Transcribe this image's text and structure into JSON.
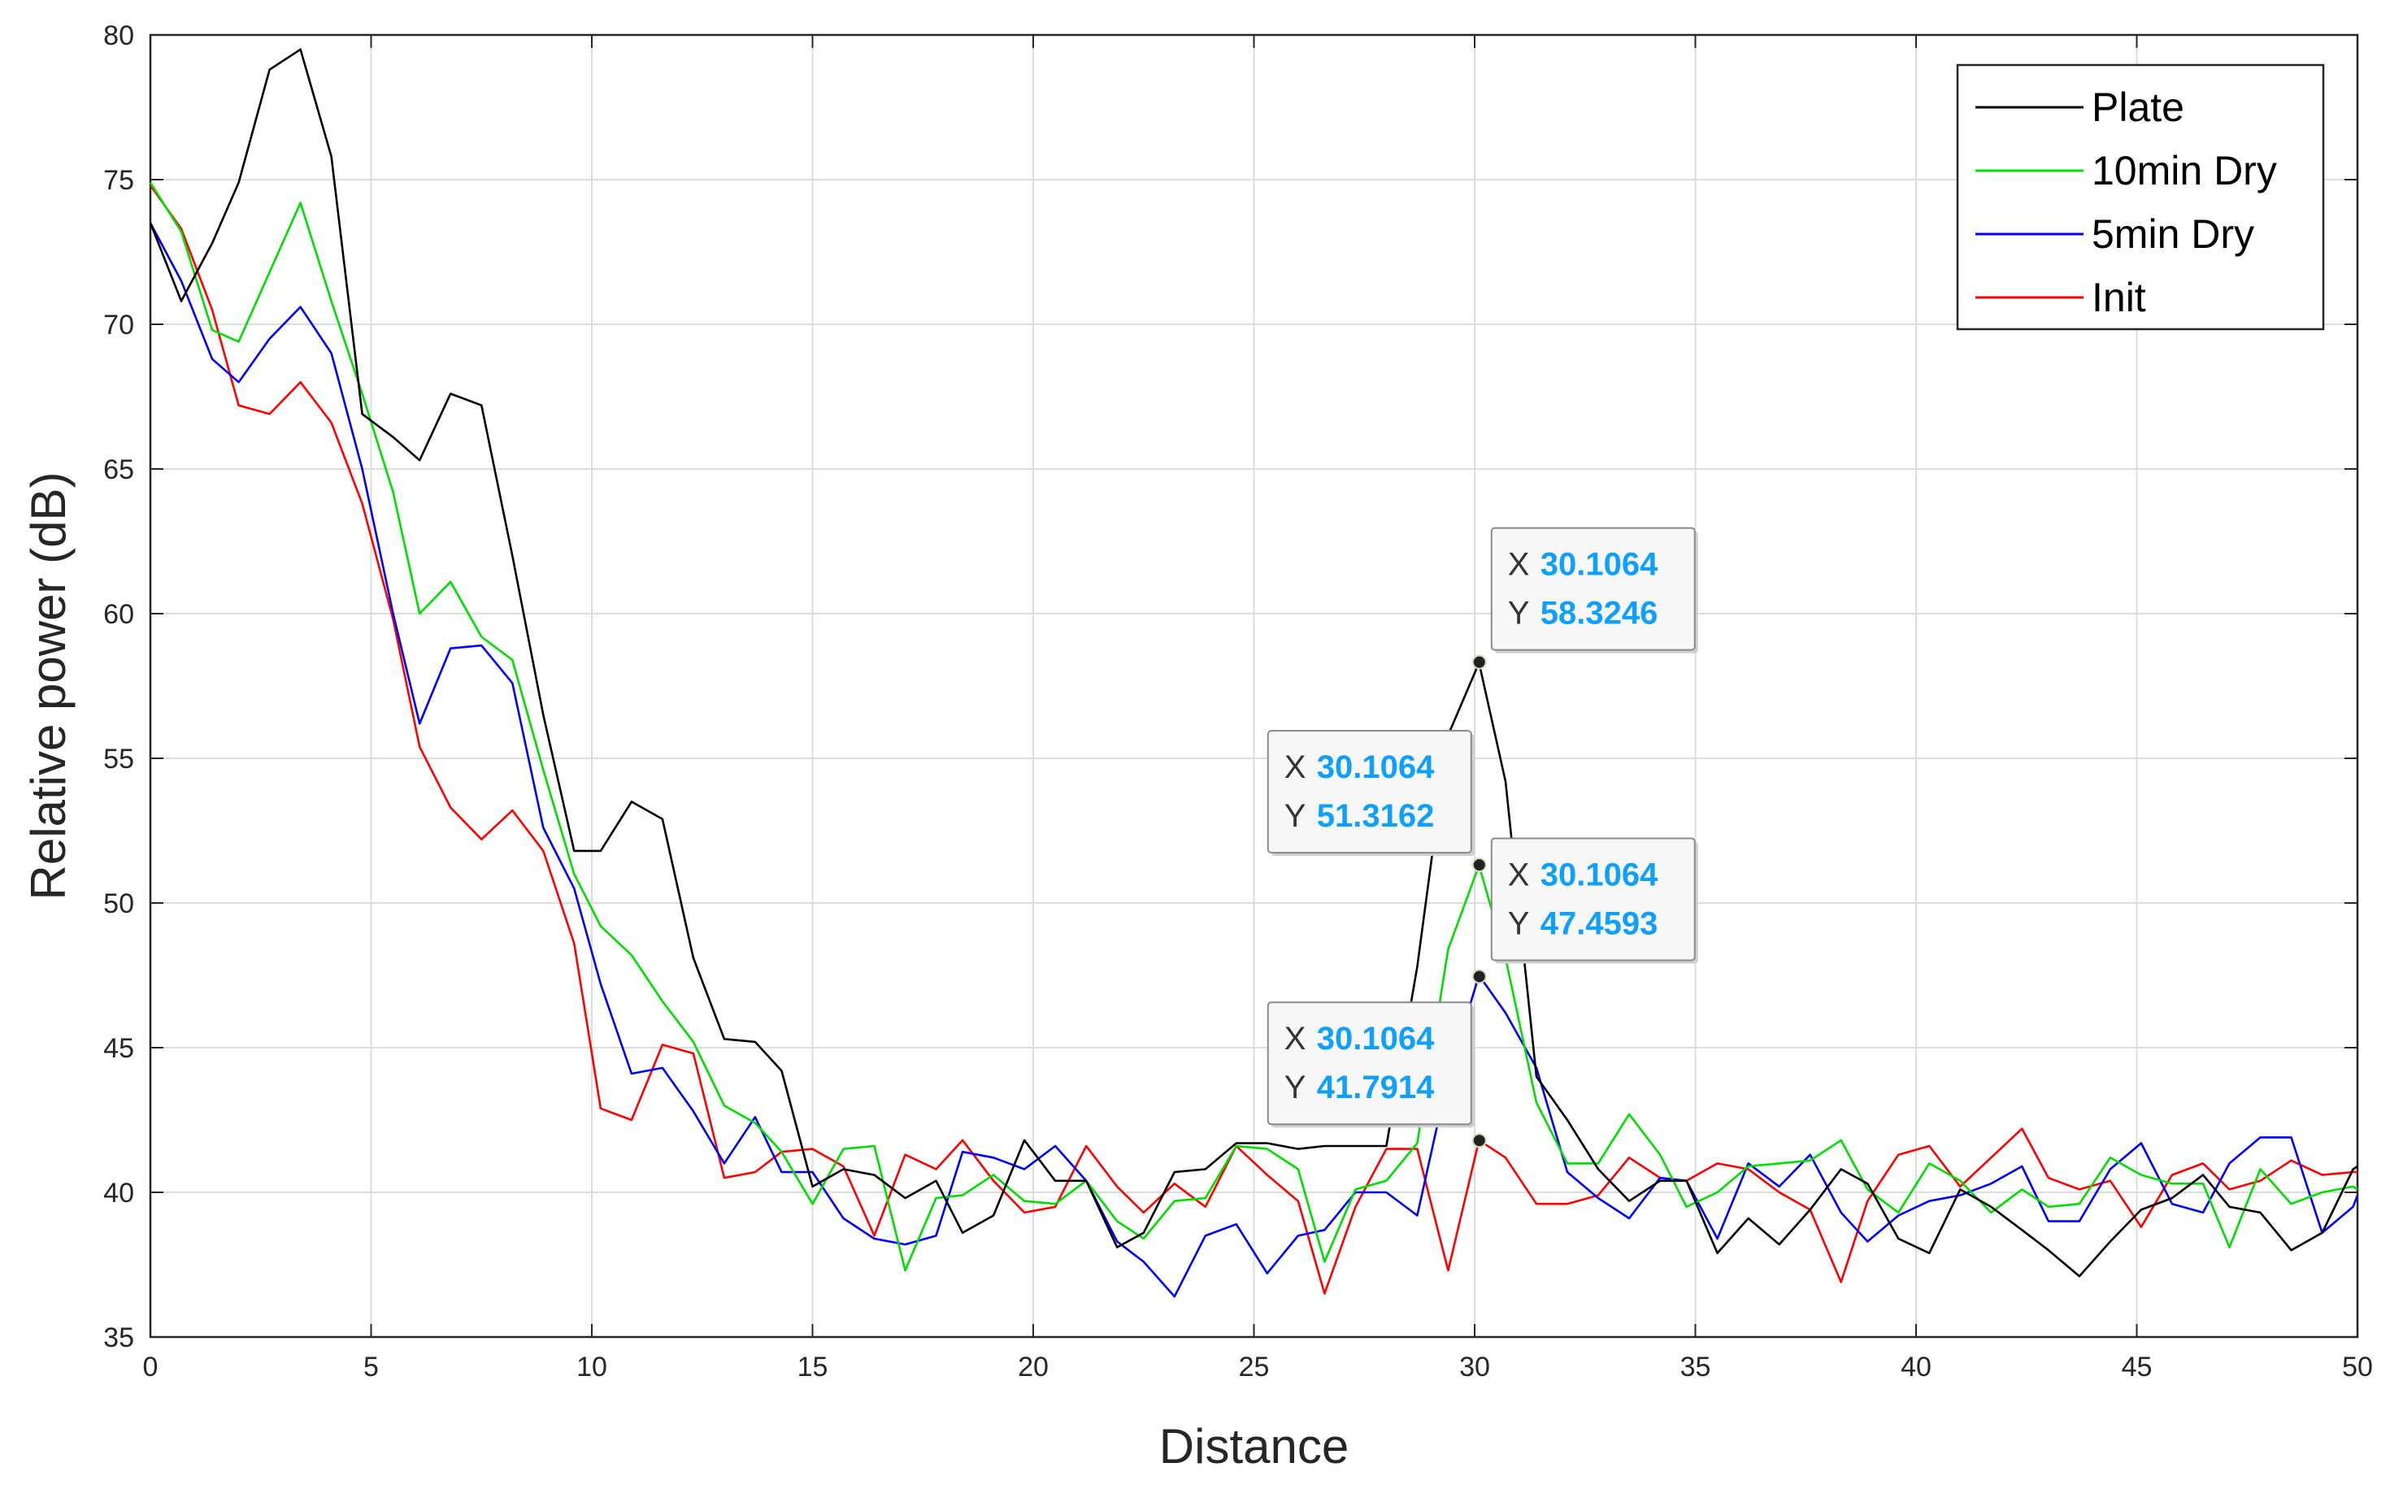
{
  "chart_data": {
    "type": "line",
    "title": "",
    "xlabel": "Distance",
    "ylabel": "Relative power (dB)",
    "xlim": [
      0,
      50
    ],
    "ylim": [
      35,
      80
    ],
    "xticks": [
      0,
      5,
      10,
      15,
      20,
      25,
      30,
      35,
      40,
      45,
      50
    ],
    "yticks": [
      35,
      40,
      45,
      50,
      55,
      60,
      65,
      70,
      75,
      80
    ],
    "grid": true,
    "legend_position": "top-right",
    "series": [
      {
        "name": "Plate",
        "color": "#000000",
        "x": [
          0,
          0.7,
          1.4,
          2.0,
          2.7,
          3.4,
          4.1,
          4.8,
          5.5,
          6.1,
          6.8,
          7.5,
          8.2,
          8.9,
          9.6,
          10.2,
          10.9,
          11.6,
          12.3,
          13.0,
          13.7,
          14.3,
          15.0,
          15.7,
          16.4,
          17.1,
          17.8,
          18.4,
          19.1,
          19.8,
          20.5,
          21.2,
          21.9,
          22.5,
          23.2,
          23.9,
          24.6,
          25.3,
          26.0,
          26.6,
          27.3,
          28.0,
          28.7,
          29.4,
          30.1,
          30.7,
          31.4,
          32.1,
          32.8,
          33.5,
          34.2,
          34.8,
          35.5,
          36.2,
          36.9,
          37.6,
          38.3,
          38.9,
          39.6,
          40.3,
          41.0,
          41.7,
          42.4,
          43.0,
          43.7,
          44.4,
          45.1,
          45.8,
          46.5,
          47.1,
          47.8,
          48.5,
          49.2,
          49.9,
          50
        ],
        "y": [
          73.5,
          70.8,
          72.8,
          74.9,
          78.8,
          79.5,
          75.8,
          66.9,
          66.1,
          65.3,
          67.6,
          67.2,
          62.0,
          56.5,
          51.8,
          51.8,
          53.5,
          52.9,
          48.1,
          45.3,
          45.2,
          44.2,
          40.2,
          40.8,
          40.6,
          39.8,
          40.4,
          38.6,
          39.2,
          41.8,
          40.4,
          40.4,
          38.1,
          38.6,
          40.7,
          40.8,
          41.7,
          41.7,
          41.5,
          41.6,
          41.6,
          41.6,
          47.8,
          55.8,
          58.3,
          54.2,
          44.0,
          42.5,
          40.8,
          39.7,
          40.4,
          40.4,
          37.9,
          39.1,
          38.2,
          39.4,
          40.8,
          40.3,
          38.4,
          37.9,
          40.1,
          39.5,
          38.7,
          38.0,
          37.1,
          38.3,
          39.4,
          39.8,
          40.6,
          39.5,
          39.3,
          38.0,
          38.6,
          40.8,
          40.9
        ]
      },
      {
        "name": "10min Dry",
        "color": "#00dd00",
        "x": [
          0,
          0.7,
          1.4,
          2.0,
          2.7,
          3.4,
          4.1,
          4.8,
          5.5,
          6.1,
          6.8,
          7.5,
          8.2,
          8.9,
          9.6,
          10.2,
          10.9,
          11.6,
          12.3,
          13.0,
          13.7,
          14.3,
          15.0,
          15.7,
          16.4,
          17.1,
          17.8,
          18.4,
          19.1,
          19.8,
          20.5,
          21.2,
          21.9,
          22.5,
          23.2,
          23.9,
          24.6,
          25.3,
          26.0,
          26.6,
          27.3,
          28.0,
          28.7,
          29.4,
          30.1,
          30.7,
          31.4,
          32.1,
          32.8,
          33.5,
          34.2,
          34.8,
          35.5,
          36.2,
          36.9,
          37.6,
          38.3,
          38.9,
          39.6,
          40.3,
          41.0,
          41.7,
          42.4,
          43.0,
          43.7,
          44.4,
          45.1,
          45.8,
          46.5,
          47.1,
          47.8,
          48.5,
          49.2,
          49.9,
          50
        ],
        "y": [
          74.9,
          73.2,
          69.8,
          69.4,
          71.8,
          74.2,
          70.8,
          67.6,
          64.2,
          60.0,
          61.1,
          59.2,
          58.4,
          54.6,
          51.0,
          49.2,
          48.2,
          46.6,
          45.2,
          43.0,
          42.4,
          41.4,
          39.6,
          41.5,
          41.6,
          37.3,
          39.8,
          39.9,
          40.6,
          39.7,
          39.6,
          40.4,
          39.0,
          38.4,
          39.7,
          39.8,
          41.6,
          41.5,
          40.8,
          37.6,
          40.1,
          40.4,
          41.7,
          48.4,
          51.3,
          48.1,
          43.1,
          41.0,
          41.0,
          42.7,
          41.3,
          39.5,
          40.0,
          40.9,
          41.0,
          41.1,
          41.8,
          40.1,
          39.3,
          41.0,
          40.4,
          39.3,
          40.1,
          39.5,
          39.6,
          41.2,
          40.6,
          40.3,
          40.3,
          38.1,
          40.8,
          39.6,
          40.0,
          40.2,
          40.1
        ]
      },
      {
        "name": "5min Dry",
        "color": "#0000ff",
        "x": [
          0,
          0.7,
          1.4,
          2.0,
          2.7,
          3.4,
          4.1,
          4.8,
          5.5,
          6.1,
          6.8,
          7.5,
          8.2,
          8.9,
          9.6,
          10.2,
          10.9,
          11.6,
          12.3,
          13.0,
          13.7,
          14.3,
          15.0,
          15.7,
          16.4,
          17.1,
          17.8,
          18.4,
          19.1,
          19.8,
          20.5,
          21.2,
          21.9,
          22.5,
          23.2,
          23.9,
          24.6,
          25.3,
          26.0,
          26.6,
          27.3,
          28.0,
          28.7,
          29.4,
          30.1,
          30.7,
          31.4,
          32.1,
          32.8,
          33.5,
          34.2,
          34.8,
          35.5,
          36.2,
          36.9,
          37.6,
          38.3,
          38.9,
          39.6,
          40.3,
          41.0,
          41.7,
          42.4,
          43.0,
          43.7,
          44.4,
          45.1,
          45.8,
          46.5,
          47.1,
          47.8,
          48.5,
          49.2,
          49.9,
          50
        ],
        "y": [
          73.5,
          71.5,
          68.8,
          68.0,
          69.5,
          70.6,
          69.0,
          65.0,
          60.0,
          56.2,
          58.8,
          58.9,
          57.6,
          52.6,
          50.5,
          47.2,
          44.1,
          44.3,
          42.8,
          41.0,
          42.6,
          40.7,
          40.7,
          39.1,
          38.4,
          38.2,
          38.5,
          41.4,
          41.2,
          40.8,
          41.6,
          40.4,
          38.3,
          37.6,
          36.4,
          38.5,
          38.9,
          37.2,
          38.5,
          38.7,
          40.0,
          40.0,
          39.2,
          44.0,
          47.5,
          46.2,
          44.3,
          40.7,
          39.8,
          39.1,
          40.5,
          40.4,
          38.4,
          41.0,
          40.2,
          41.3,
          39.3,
          38.3,
          39.2,
          39.7,
          39.9,
          40.3,
          40.9,
          39.0,
          39.0,
          40.8,
          41.7,
          39.6,
          39.3,
          41.0,
          41.9,
          41.9,
          38.6,
          39.5,
          39.9
        ]
      },
      {
        "name": "Init",
        "color": "#ff0000",
        "x": [
          0,
          0.7,
          1.4,
          2.0,
          2.7,
          3.4,
          4.1,
          4.8,
          5.5,
          6.1,
          6.8,
          7.5,
          8.2,
          8.9,
          9.6,
          10.2,
          10.9,
          11.6,
          12.3,
          13.0,
          13.7,
          14.3,
          15.0,
          15.7,
          16.4,
          17.1,
          17.8,
          18.4,
          19.1,
          19.8,
          20.5,
          21.2,
          21.9,
          22.5,
          23.2,
          23.9,
          24.6,
          25.3,
          26.0,
          26.6,
          27.3,
          28.0,
          28.7,
          29.4,
          30.1,
          30.7,
          31.4,
          32.1,
          32.8,
          33.5,
          34.2,
          34.8,
          35.5,
          36.2,
          36.9,
          37.6,
          38.3,
          38.9,
          39.6,
          40.3,
          41.0,
          41.7,
          42.4,
          43.0,
          43.7,
          44.4,
          45.1,
          45.8,
          46.5,
          47.1,
          47.8,
          48.5,
          49.2,
          49.9,
          50
        ],
        "y": [
          74.8,
          73.3,
          70.5,
          67.2,
          66.9,
          68.0,
          66.6,
          63.8,
          59.8,
          55.4,
          53.3,
          52.2,
          53.2,
          51.8,
          48.6,
          42.9,
          42.5,
          45.1,
          44.8,
          40.5,
          40.7,
          41.4,
          41.5,
          40.9,
          38.5,
          41.3,
          40.8,
          41.8,
          40.4,
          39.3,
          39.5,
          41.6,
          40.2,
          39.3,
          40.3,
          39.5,
          41.6,
          40.6,
          39.7,
          36.5,
          39.5,
          41.5,
          41.5,
          37.3,
          41.8,
          41.2,
          39.6,
          39.6,
          39.9,
          41.2,
          40.5,
          40.4,
          41.0,
          40.8,
          40.0,
          39.4,
          36.9,
          39.7,
          41.3,
          41.6,
          40.2,
          41.2,
          42.2,
          40.5,
          40.1,
          40.4,
          38.8,
          40.6,
          41.0,
          40.1,
          40.4,
          41.1,
          40.6,
          40.7,
          40.7
        ]
      }
    ],
    "annotations": [
      {
        "series": "Plate",
        "x": 30.1064,
        "y": 58.3246,
        "x_label": "X",
        "y_label": "Y",
        "x_text": "30.1064",
        "y_text": "58.3246"
      },
      {
        "series": "10min Dry",
        "x": 30.1064,
        "y": 51.3162,
        "x_label": "X",
        "y_label": "Y",
        "x_text": "30.1064",
        "y_text": "51.3162"
      },
      {
        "series": "5min Dry",
        "x": 30.1064,
        "y": 47.4593,
        "x_label": "X",
        "y_label": "Y",
        "x_text": "30.1064",
        "y_text": "47.4593"
      },
      {
        "series": "Init",
        "x": 30.1064,
        "y": 41.7914,
        "x_label": "X",
        "y_label": "Y",
        "x_text": "30.1064",
        "y_text": "41.7914"
      }
    ],
    "colors": {
      "grid": "#dcdcdc",
      "axis": "#262626",
      "tip_value": "#0f9fff",
      "tip_border": "#8a8a8a",
      "tip_background": "#f7f7f7"
    }
  }
}
